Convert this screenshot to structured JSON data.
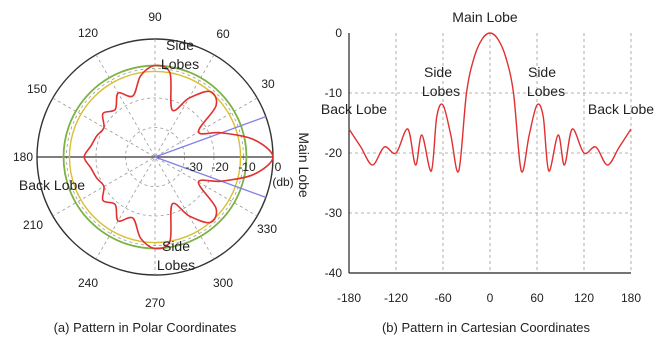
{
  "chart_data": [
    {
      "type": "polar",
      "caption": "(a) Pattern in Polar Coordinates",
      "angle_ticks": [
        "90",
        "60",
        "30",
        "0",
        "330",
        "300",
        "270",
        "240",
        "210",
        "180",
        "150",
        "120"
      ],
      "radial_ticks": [
        "-30",
        "-20",
        "-10",
        "0"
      ],
      "radial_unit": "(db)",
      "rlim": [
        -40,
        0
      ],
      "annotations": {
        "side_lobes_top": [
          "Side",
          "Lobes"
        ],
        "side_lobes_bottom": [
          "Side",
          "Lobes"
        ],
        "back_lobe": "Back Lobe",
        "main_lobe": "Main Lobe"
      },
      "angles_deg": [
        0,
        10,
        20,
        30,
        40,
        50,
        60,
        70,
        80,
        90,
        100,
        110,
        120,
        130,
        140,
        150,
        160,
        170,
        180
      ],
      "gain_db": [
        0,
        -6,
        -16,
        -23,
        -13,
        -11,
        -17,
        -23,
        -11,
        -9,
        -12,
        -18,
        -15,
        -19,
        -17,
        -20,
        -19,
        -18,
        -16
      ],
      "reference_circles_db": [
        -9,
        -11
      ],
      "colors": {
        "pattern": "#e03030",
        "reference_outer": "#7cb342",
        "reference_inner": "#d8c030",
        "beam_lines": "#8080e8"
      }
    },
    {
      "type": "line",
      "caption": "(b) Pattern in Cartesian Coordinates",
      "xlim": [
        -180,
        180
      ],
      "ylim": [
        -40,
        0
      ],
      "x_ticks": [
        "-180",
        "-120",
        "-60",
        "0",
        "60",
        "120",
        "180"
      ],
      "y_ticks": [
        "0",
        "-10",
        "-20",
        "-30",
        "-40"
      ],
      "annotations": {
        "main_lobe": "Main Lobe",
        "side_lobes_left": [
          "Side",
          "Lobes"
        ],
        "side_lobes_right": [
          "Side",
          "Lobes"
        ],
        "back_lobe_left": "Back Lobe",
        "back_lobe_right": "Back Lobe"
      },
      "series": [
        {
          "x": [
            -180,
            -165,
            -150,
            -135,
            -120,
            -105,
            -95,
            -87,
            -75,
            -68,
            -60,
            -50,
            -40,
            -30,
            -20,
            -10,
            0,
            10,
            20,
            30,
            40,
            50,
            60,
            68,
            75,
            87,
            95,
            105,
            120,
            135,
            150,
            165,
            180
          ],
          "y": [
            -16,
            -19,
            -22,
            -19,
            -20,
            -16,
            -22,
            -17,
            -23,
            -14,
            -12,
            -17,
            -23,
            -10,
            -4,
            -1,
            0,
            -1,
            -4,
            -10,
            -23,
            -17,
            -12,
            -14,
            -23,
            -17,
            -22,
            -16,
            -20,
            -19,
            -22,
            -19,
            -16
          ]
        }
      ],
      "colors": {
        "line": "#e03030"
      }
    }
  ]
}
